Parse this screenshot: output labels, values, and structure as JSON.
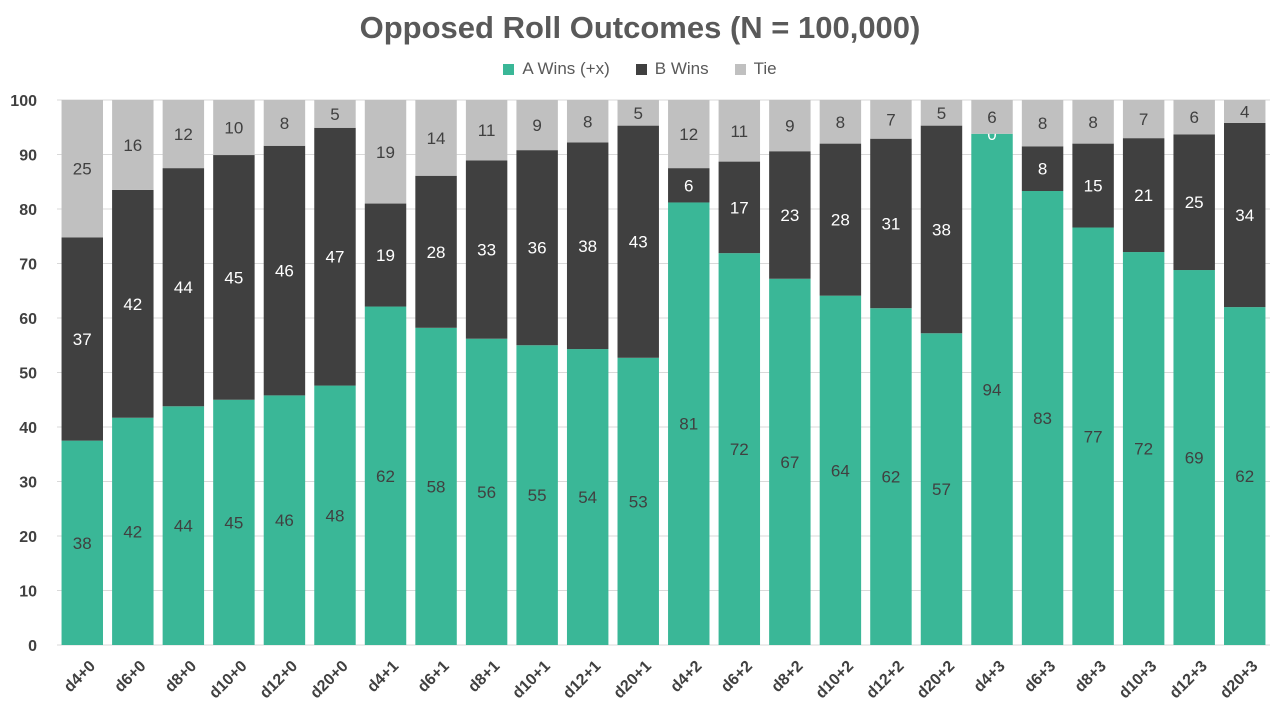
{
  "chart_data": {
    "type": "bar",
    "stacked": true,
    "title": "Opposed Roll Outcomes (N = 100,000)",
    "xlabel": "",
    "ylabel": "",
    "ylim": [
      0,
      100
    ],
    "yticks": [
      0,
      10,
      20,
      30,
      40,
      50,
      60,
      70,
      80,
      90,
      100
    ],
    "grid": true,
    "legend_position": "top",
    "categories": [
      "d4+0",
      "d6+0",
      "d8+0",
      "d10+0",
      "d12+0",
      "d20+0",
      "d4+1",
      "d6+1",
      "d8+1",
      "d10+1",
      "d12+1",
      "d20+1",
      "d4+2",
      "d6+2",
      "d8+2",
      "d10+2",
      "d12+2",
      "d20+2",
      "d4+3",
      "d6+3",
      "d8+3",
      "d10+3",
      "d12+3",
      "d20+3"
    ],
    "series": [
      {
        "name": "A Wins (+x)",
        "color": "#3ab797",
        "label_color": "#404040",
        "values": [
          37.5,
          41.7,
          43.8,
          45.0,
          45.8,
          47.6,
          62.1,
          58.2,
          56.2,
          55.0,
          54.3,
          52.7,
          81.2,
          71.9,
          67.2,
          64.1,
          61.8,
          57.2,
          93.8,
          83.3,
          76.6,
          72.1,
          68.8,
          62.0
        ],
        "labels": [
          "38",
          "42",
          "44",
          "45",
          "46",
          "48",
          "62",
          "58",
          "56",
          "55",
          "54",
          "53",
          "81",
          "72",
          "67",
          "64",
          "62",
          "57",
          "94",
          "83",
          "77",
          "72",
          "69",
          "62"
        ]
      },
      {
        "name": "B Wins",
        "color": "#404040",
        "label_color": "#ffffff",
        "values": [
          37.3,
          41.8,
          43.7,
          44.9,
          45.8,
          47.3,
          18.9,
          27.9,
          32.7,
          35.8,
          37.9,
          42.6,
          6.3,
          16.8,
          23.4,
          27.9,
          31.1,
          38.1,
          0.0,
          8.2,
          15.4,
          20.9,
          24.9,
          33.8
        ],
        "labels": [
          "37",
          "42",
          "44",
          "45",
          "46",
          "47",
          "19",
          "28",
          "33",
          "36",
          "38",
          "43",
          "6",
          "17",
          "23",
          "28",
          "31",
          "38",
          "0",
          "8",
          "15",
          "21",
          "25",
          "34"
        ]
      },
      {
        "name": "Tie",
        "color": "#c0c0c0",
        "label_color": "#404040",
        "values": [
          25.2,
          16.5,
          12.5,
          10.1,
          8.4,
          5.1,
          19.0,
          13.9,
          11.1,
          9.2,
          7.8,
          4.7,
          12.5,
          11.3,
          9.4,
          8.0,
          7.1,
          4.7,
          6.2,
          8.5,
          8.0,
          7.0,
          6.3,
          4.2
        ],
        "labels": [
          "25",
          "16",
          "12",
          "10",
          "8",
          "5",
          "19",
          "14",
          "11",
          "9",
          "8",
          "5",
          "12",
          "11",
          "9",
          "8",
          "7",
          "5",
          "6",
          "8",
          "8",
          "7",
          "6",
          "4"
        ]
      }
    ]
  }
}
